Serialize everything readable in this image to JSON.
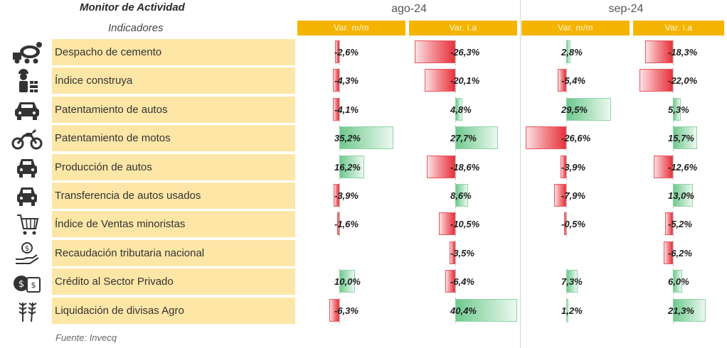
{
  "header": {
    "title": "Monitor de Actividad",
    "subtitle": "Indicadores",
    "periods": [
      "ago-24",
      "sep-24"
    ],
    "columns": [
      "Var. m/m",
      "Var. i.a",
      "Var. m/m",
      "Var. i.a"
    ]
  },
  "colors": {
    "header_bar": "#f5b400",
    "label_fill": "#fde6a6",
    "positive": "#6fc98e",
    "negative": "#e8323c"
  },
  "rows": [
    {
      "label": "Despacho de cemento",
      "icon": "cement-mixer-icon",
      "values": [
        -2.6,
        -26.3,
        2.8,
        -18.3
      ],
      "texts": [
        "-2,6%",
        "-26,3%",
        "2,8%",
        "-18,3%"
      ]
    },
    {
      "label": "Índice construya",
      "icon": "construction-worker-icon",
      "values": [
        -4.3,
        -20.1,
        -5.4,
        -22.0
      ],
      "texts": [
        "-4,3%",
        "-20,1%",
        "-5,4%",
        "-22,0%"
      ]
    },
    {
      "label": "Patentamiento de autos",
      "icon": "car-icon",
      "values": [
        -4.1,
        4.8,
        29.5,
        5.3
      ],
      "texts": [
        "-4,1%",
        "4,8%",
        "29,5%",
        "5,3%"
      ]
    },
    {
      "label": "Patentamiento de motos",
      "icon": "motorcycle-icon",
      "values": [
        35.2,
        27.7,
        -26.6,
        15.7
      ],
      "texts": [
        "35,2%",
        "27,7%",
        "-26,6%",
        "15,7%"
      ]
    },
    {
      "label": "Producción de autos",
      "icon": "car-front-icon",
      "values": [
        16.2,
        -18.6,
        -3.9,
        -12.6
      ],
      "texts": [
        "16,2%",
        "-18,6%",
        "-3,9%",
        "-12,6%"
      ]
    },
    {
      "label": "Transferencia de autos usados",
      "icon": "car-front-icon",
      "values": [
        -3.9,
        8.6,
        -7.9,
        13.0
      ],
      "texts": [
        "-3,9%",
        "8,6%",
        "-7,9%",
        "13,0%"
      ]
    },
    {
      "label": "Índice de Ventas minoristas",
      "icon": "shopping-cart-icon",
      "values": [
        -1.6,
        -10.5,
        -0.5,
        -5.2
      ],
      "texts": [
        "-1,6%",
        "-10,5%",
        "-0,5%",
        "-5,2%"
      ]
    },
    {
      "label": "Recaudación tributaria nacional",
      "icon": "coin-hand-icon",
      "values": [
        null,
        -3.5,
        null,
        -6.2
      ],
      "texts": [
        "",
        "-3,5%",
        "",
        "-6,2%"
      ]
    },
    {
      "label": "Crédito al Sector Privado",
      "icon": "money-bills-icon",
      "values": [
        10.0,
        -6.4,
        7.3,
        6.0
      ],
      "texts": [
        "10,0%",
        "-6,4%",
        "7,3%",
        "6,0%"
      ]
    },
    {
      "label": "Liquidación de divisas Agro",
      "icon": "wheat-icon",
      "values": [
        -6.3,
        40.4,
        1.2,
        21.3
      ],
      "texts": [
        "-6,3%",
        "40,4%",
        "1,2%",
        "21,3%"
      ]
    }
  ],
  "footer": {
    "source": "Fuente: Invecq"
  }
}
